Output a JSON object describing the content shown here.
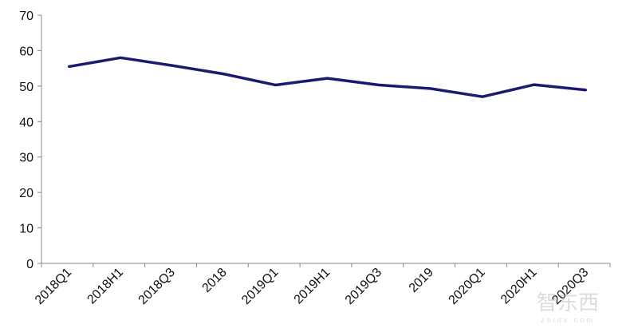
{
  "chart_data": {
    "type": "line",
    "title": "",
    "xlabel": "",
    "ylabel": "",
    "categories": [
      "2018Q1",
      "2018H1",
      "2018Q3",
      "2018",
      "2019Q1",
      "2019H1",
      "2019Q3",
      "2019",
      "2020Q1",
      "2020H1",
      "2020Q3"
    ],
    "series": [
      {
        "values": [
          55.5,
          58.0,
          55.8,
          53.4,
          50.3,
          52.2,
          50.3,
          49.3,
          47.0,
          50.4,
          48.9
        ],
        "color": "#1a1a6e"
      }
    ],
    "ylim": [
      0,
      70
    ],
    "yticks": [
      0,
      10,
      20,
      30,
      40,
      50,
      60,
      70
    ],
    "grid": false,
    "legend": "none"
  },
  "watermark": {
    "text": "智东西",
    "subtext": "zhidx.com"
  }
}
